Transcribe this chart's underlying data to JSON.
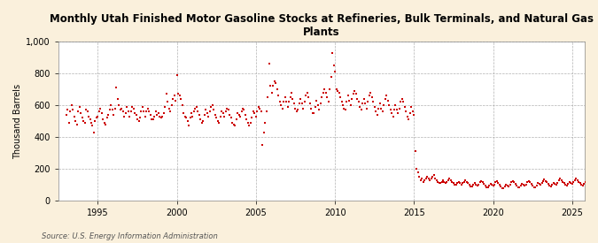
{
  "title": "Monthly Utah Finished Motor Gasoline Stocks at Refineries, Bulk Terminals, and Natural Gas\nPlants",
  "ylabel": "Thousand Barrels",
  "source": "Source: U.S. Energy Information Administration",
  "marker_color": "#CC0000",
  "background_color": "#FAF0DC",
  "plot_bg_color": "#FFFFFF",
  "ylim": [
    0,
    1000
  ],
  "yticks": [
    0,
    200,
    400,
    600,
    800,
    1000
  ],
  "ytick_labels": [
    "0",
    "200",
    "400",
    "600",
    "800",
    "1,000"
  ],
  "xlim_start": 1992.5,
  "xlim_end": 2025.8,
  "xticks": [
    1995,
    2000,
    2005,
    2010,
    2015,
    2020,
    2025
  ],
  "values": [
    540,
    570,
    490,
    560,
    600,
    570,
    530,
    500,
    480,
    560,
    590,
    550,
    520,
    500,
    490,
    570,
    560,
    530,
    510,
    490,
    470,
    430,
    500,
    520,
    530,
    560,
    580,
    550,
    510,
    490,
    480,
    520,
    540,
    570,
    600,
    570,
    540,
    580,
    710,
    640,
    600,
    570,
    580,
    560,
    530,
    550,
    590,
    560,
    530,
    560,
    590,
    580,
    550,
    540,
    510,
    500,
    520,
    560,
    590,
    560,
    530,
    560,
    580,
    560,
    540,
    510,
    510,
    530,
    560,
    540,
    550,
    530,
    520,
    530,
    550,
    590,
    670,
    620,
    580,
    560,
    600,
    640,
    660,
    630,
    790,
    670,
    660,
    640,
    600,
    550,
    530,
    520,
    500,
    470,
    520,
    550,
    530,
    560,
    580,
    590,
    560,
    540,
    510,
    490,
    500,
    540,
    570,
    550,
    530,
    560,
    590,
    600,
    570,
    540,
    520,
    500,
    490,
    530,
    560,
    550,
    530,
    560,
    580,
    570,
    540,
    520,
    490,
    480,
    470,
    510,
    550,
    540,
    530,
    560,
    580,
    570,
    540,
    510,
    490,
    470,
    490,
    520,
    560,
    550,
    530,
    560,
    590,
    580,
    560,
    350,
    430,
    490,
    560,
    650,
    860,
    720,
    680,
    720,
    750,
    740,
    700,
    660,
    620,
    600,
    580,
    620,
    650,
    620,
    590,
    620,
    650,
    680,
    640,
    610,
    580,
    560,
    570,
    610,
    640,
    610,
    580,
    620,
    660,
    680,
    650,
    610,
    580,
    550,
    550,
    590,
    630,
    600,
    570,
    610,
    650,
    680,
    700,
    680,
    650,
    620,
    700,
    780,
    930,
    850,
    810,
    700,
    690,
    680,
    650,
    620,
    600,
    580,
    570,
    620,
    660,
    630,
    600,
    640,
    670,
    690,
    670,
    640,
    620,
    590,
    570,
    610,
    640,
    610,
    580,
    620,
    660,
    680,
    650,
    620,
    590,
    560,
    540,
    580,
    610,
    580,
    560,
    600,
    640,
    660,
    630,
    600,
    570,
    550,
    530,
    570,
    600,
    570,
    550,
    580,
    620,
    640,
    620,
    590,
    560,
    530,
    510,
    550,
    590,
    560,
    540,
    310,
    200,
    180,
    150,
    130,
    140,
    120,
    130,
    140,
    150,
    140,
    130,
    140,
    150,
    160,
    140,
    130,
    120,
    110,
    110,
    120,
    130,
    120,
    110,
    120,
    130,
    140,
    130,
    120,
    110,
    100,
    100,
    110,
    120,
    110,
    100,
    110,
    120,
    130,
    120,
    110,
    100,
    90,
    90,
    100,
    110,
    100,
    95,
    100,
    115,
    125,
    115,
    105,
    95,
    85,
    85,
    95,
    105,
    100,
    95,
    100,
    115,
    125,
    110,
    100,
    90,
    80,
    80,
    90,
    100,
    95,
    90,
    100,
    115,
    125,
    115,
    105,
    95,
    85,
    85,
    95,
    105,
    100,
    95,
    100,
    115,
    125,
    115,
    105,
    95,
    85,
    85,
    95,
    110,
    105,
    100,
    110,
    125,
    135,
    125,
    115,
    105,
    95,
    90,
    100,
    110,
    105,
    100,
    110,
    130,
    140,
    130,
    120,
    110,
    100,
    95,
    105,
    115,
    110,
    105,
    115,
    130,
    140,
    130,
    120,
    110,
    100,
    95,
    105,
    120,
    115,
    110,
    120,
    130
  ]
}
